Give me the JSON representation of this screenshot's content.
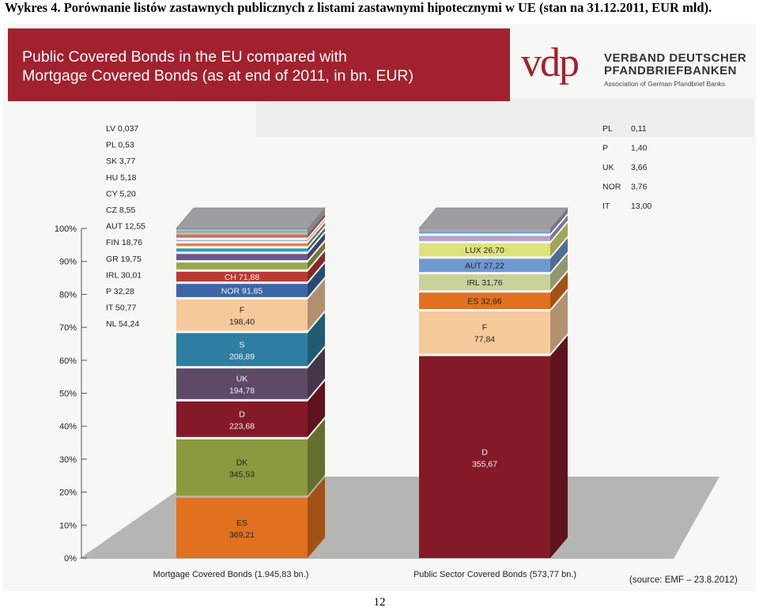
{
  "document": {
    "caption": "Wykres 4. Porównanie listów zastawnych publicznych z listami zastawnymi hipotecznymi w UE (stan na 31.12.2011, EUR mld).",
    "page_number": "12"
  },
  "header": {
    "title": "Public Covered Bonds in the EU compared with\nMortgage Covered Bonds (as at end of 2011, in bn. EUR)",
    "logo_mark": "vdp",
    "logo_name": "VERBAND DEUTSCHER\nPFANDBRIEFBANKEN",
    "logo_subtitle": "Association of German Pfandbrief Banks"
  },
  "source": "(source: EMF – 23.8.2012)",
  "colors": {
    "banner": "#a2212f",
    "floor": "#a9a9a6"
  },
  "chart_data": {
    "type": "bar",
    "subtype": "stacked-100-percent-3d",
    "ylim": [
      0,
      100
    ],
    "yticks": [
      "0%",
      "10%",
      "20%",
      "30%",
      "40%",
      "50%",
      "60%",
      "70%",
      "80%",
      "90%",
      "100%"
    ],
    "categories": [
      "Mortgage Covered Bonds (1.945,83 bn.)",
      "Public Sector Covered Bonds (573,77 bn.)"
    ],
    "stacks": [
      {
        "name": "Mortgage Covered Bonds (1.945,83 bn.)",
        "total": 1945.83,
        "segments": [
          {
            "code": "ES",
            "value": "369,21",
            "v": 369.21,
            "color": "#e1711f",
            "label": true
          },
          {
            "code": "DK",
            "value": "345,53",
            "v": 345.53,
            "color": "#8b9a3e",
            "label": true
          },
          {
            "code": "D",
            "value": "223,68",
            "v": 223.68,
            "color": "#841a28",
            "label": true
          },
          {
            "code": "UK",
            "value": "194,78",
            "v": 194.78,
            "color": "#5e4a66",
            "label": true
          },
          {
            "code": "S",
            "value": "208,89",
            "v": 208.89,
            "color": "#2d7ea0",
            "label": true
          },
          {
            "code": "F",
            "value": "198,40",
            "v": 198.4,
            "color": "#f6c99a",
            "label": true
          },
          {
            "code": "NOR",
            "value": "91,85",
            "v": 91.85,
            "color": "#3c66a6",
            "label": true
          },
          {
            "code": "CH",
            "value": "71,88",
            "v": 71.88,
            "color": "#b83a33",
            "label": true
          },
          {
            "code": "NL",
            "value": "54,24",
            "v": 54.24,
            "color": "#9aa74c",
            "label": false
          },
          {
            "code": "IT",
            "value": "50,77",
            "v": 50.77,
            "color": "#6b5690",
            "label": false
          },
          {
            "code": "P",
            "value": "32,28",
            "v": 32.28,
            "color": "#2a9cbf",
            "label": false
          },
          {
            "code": "IRL",
            "value": "30,01",
            "v": 30.01,
            "color": "#e5833b",
            "label": false
          },
          {
            "code": "GR",
            "value": "19,75",
            "v": 19.75,
            "color": "#8fa7d1",
            "label": false
          },
          {
            "code": "FIN",
            "value": "18,76",
            "v": 18.76,
            "color": "#cc6b6b",
            "label": false
          },
          {
            "code": "AUT",
            "value": "12,55",
            "v": 12.55,
            "color": "#b5c58a",
            "label": false
          },
          {
            "code": "CZ",
            "value": "8,55",
            "v": 8.55,
            "color": "#a696c0",
            "label": false
          },
          {
            "code": "CY",
            "value": "5,20",
            "v": 5.2,
            "color": "#7fc5d9",
            "label": false
          },
          {
            "code": "HU",
            "value": "5,18",
            "v": 5.18,
            "color": "#f3a35c",
            "label": false
          },
          {
            "code": "SK",
            "value": "3,77",
            "v": 3.77,
            "color": "#4a7ec0",
            "label": false
          },
          {
            "code": "PL",
            "value": "0,53",
            "v": 0.53,
            "color": "#c23f3f",
            "label": false
          },
          {
            "code": "LV",
            "value": "0,037",
            "v": 0.037,
            "color": "#9bbb59",
            "label": false
          }
        ],
        "side_labels": [
          "LV 0,037",
          "PL 0,53",
          "SK 3,77",
          "HU 5,18",
          "CY 5,20",
          "CZ 8,55",
          "AUT 12,55",
          "FIN 18,76",
          "GR 19,75",
          "IRL 30,01",
          "P 32,28",
          "IT 50,77",
          "NL 54,24"
        ]
      },
      {
        "name": "Public Sector Covered Bonds (573,77 bn.)",
        "total": 573.77,
        "segments": [
          {
            "code": "D",
            "value": "355,67",
            "v": 355.67,
            "color": "#841a28",
            "label": true
          },
          {
            "code": "F",
            "value": "77,84",
            "v": 77.84,
            "color": "#f6c99a",
            "label": true
          },
          {
            "code": "ES",
            "value": "32,66",
            "v": 32.66,
            "color": "#e1711f",
            "label": true
          },
          {
            "code": "IRL",
            "value": "31,76",
            "v": 31.76,
            "color": "#c9d29a",
            "label": true
          },
          {
            "code": "AUT",
            "value": "27,22",
            "v": 27.22,
            "color": "#6f99d1",
            "label": true
          },
          {
            "code": "LUX",
            "value": "26,70",
            "v": 26.7,
            "color": "#dfe27a",
            "label": true
          },
          {
            "code": "IT",
            "value": "13,00",
            "v": 13.0,
            "color": "#b0a3cc",
            "label": false
          },
          {
            "code": "NOR",
            "value": "3,76",
            "v": 3.76,
            "color": "#6aa9c9",
            "label": false
          },
          {
            "code": "UK",
            "value": "3,66",
            "v": 3.66,
            "color": "#a39abf",
            "label": false
          },
          {
            "code": "P",
            "value": "1,40",
            "v": 1.4,
            "color": "#e39a58",
            "label": false
          },
          {
            "code": "PL",
            "value": "0,11",
            "v": 0.11,
            "color": "#bfbfbf",
            "label": false
          }
        ],
        "side_labels": [
          {
            "code": "PL",
            "value": "0,11"
          },
          {
            "code": "P",
            "value": "1,40"
          },
          {
            "code": "UK",
            "value": "3,66"
          },
          {
            "code": "NOR",
            "value": "3,76"
          },
          {
            "code": "IT",
            "value": "13,00"
          }
        ]
      }
    ]
  }
}
